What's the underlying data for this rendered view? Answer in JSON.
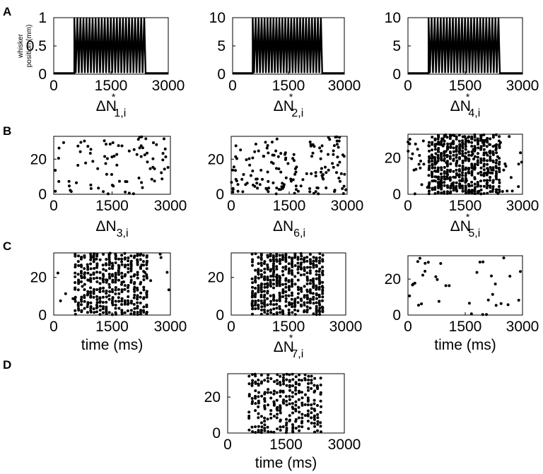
{
  "panel_labels": [
    "A",
    "B",
    "C",
    "D"
  ],
  "chart_data": [
    {
      "id": "A1",
      "type": "line",
      "panel": "A",
      "xlabel": "ΔN*1,i",
      "ylabel": "whisker position (mm)",
      "xlim": [
        0,
        3000
      ],
      "ylim": [
        0,
        1
      ],
      "xticks": [
        "0",
        "1500",
        "3000"
      ],
      "yticks": [
        "0",
        "0.5",
        "1"
      ],
      "stimulus": {
        "baseline": 0.02,
        "amplitude": 1,
        "on_start": 540,
        "on_end": 2450,
        "pulse_count": 24
      }
    },
    {
      "id": "A2",
      "type": "line",
      "panel": "A",
      "xlabel": "ΔN*2,i",
      "ylabel": "",
      "xlim": [
        0,
        3000
      ],
      "ylim": [
        0,
        10
      ],
      "xticks": [
        "0",
        "1500",
        "3000"
      ],
      "yticks": [
        "0",
        "5",
        "10"
      ],
      "stimulus": {
        "baseline": 0.2,
        "amplitude": 10,
        "on_start": 540,
        "on_end": 2450,
        "pulse_count": 24
      }
    },
    {
      "id": "A3",
      "type": "line",
      "panel": "A",
      "xlabel": "ΔN*4,i",
      "ylabel": "",
      "xlim": [
        0,
        3000
      ],
      "ylim": [
        0,
        10
      ],
      "xticks": [
        "0",
        "1500",
        "3000"
      ],
      "yticks": [
        "0",
        "5",
        "10"
      ],
      "stimulus": {
        "baseline": 0.2,
        "amplitude": 10,
        "on_start": 540,
        "on_end": 2450,
        "pulse_count": 24
      }
    },
    {
      "id": "B1",
      "type": "scatter",
      "panel": "B",
      "xlabel": "ΔN3,i",
      "ylabel": "",
      "xlim": [
        0,
        3000
      ],
      "ylim": [
        0,
        33
      ],
      "xticks": [
        "0",
        "1500",
        "3000"
      ],
      "yticks": [
        "0",
        "20"
      ],
      "raster": {
        "seed": 11,
        "n_trials": 33,
        "prob_per_bin": 0.05,
        "bin_ms": 60,
        "t_start": 0,
        "t_end": 3000
      }
    },
    {
      "id": "B2",
      "type": "scatter",
      "panel": "B",
      "xlabel": "ΔN6,i",
      "ylabel": "",
      "xlim": [
        0,
        3000
      ],
      "ylim": [
        0,
        33
      ],
      "xticks": [
        "0",
        "1500",
        "3000"
      ],
      "yticks": [
        "0",
        "20"
      ],
      "raster": {
        "seed": 23,
        "n_trials": 33,
        "prob_per_bin": 0.08,
        "bin_ms": 60,
        "t_start": 0,
        "t_end": 3000
      }
    },
    {
      "id": "B3",
      "type": "scatter",
      "panel": "B",
      "xlabel": "ΔN*5,i",
      "ylabel": "",
      "xlim": [
        0,
        3000
      ],
      "ylim": [
        0,
        33
      ],
      "xticks": [
        "0",
        "1500",
        "3000"
      ],
      "yticks": [
        "0",
        "20"
      ],
      "raster": {
        "seed": 37,
        "n_trials": 33,
        "prob_per_bin": 0.06,
        "bin_ms": 60,
        "t_start": 0,
        "t_end": 3000,
        "locked": {
          "t_start": 540,
          "t_end": 2450,
          "period_ms": 80,
          "prob": 0.5
        }
      }
    },
    {
      "id": "C1",
      "type": "scatter",
      "panel": "C",
      "xlabel": "time (ms)",
      "ylabel": "",
      "xlim": [
        0,
        3000
      ],
      "ylim": [
        0,
        33
      ],
      "xticks": [
        "0",
        "1500",
        "3000"
      ],
      "yticks": [
        "0",
        "20"
      ],
      "raster": {
        "seed": 41,
        "n_trials": 33,
        "prob_per_bin": 0.012,
        "bin_ms": 60,
        "t_start": 0,
        "t_end": 3000,
        "locked": {
          "t_start": 540,
          "t_end": 2450,
          "period_ms": 80,
          "prob": 0.45
        }
      }
    },
    {
      "id": "C2",
      "type": "scatter",
      "panel": "C",
      "xlabel": "ΔN*7,i",
      "ylabel": "",
      "xlim": [
        0,
        3000
      ],
      "ylim": [
        0,
        33
      ],
      "xticks": [
        "0",
        "1500",
        "3000"
      ],
      "yticks": [
        "0",
        "20"
      ],
      "raster": {
        "seed": 53,
        "n_trials": 33,
        "prob_per_bin": 0.002,
        "bin_ms": 60,
        "t_start": 0,
        "t_end": 3000,
        "locked": {
          "t_start": 540,
          "t_end": 2450,
          "period_ms": 80,
          "prob": 0.5
        }
      }
    },
    {
      "id": "C3",
      "type": "scatter",
      "panel": "C",
      "xlabel": "time (ms)",
      "ylabel": "",
      "xlim": [
        0,
        3000
      ],
      "ylim": [
        0,
        33
      ],
      "xticks": [
        "0",
        "1500",
        "3000"
      ],
      "yticks": [
        "0",
        "20"
      ],
      "raster": {
        "seed": 67,
        "n_trials": 33,
        "prob_per_bin": 0.018,
        "bin_ms": 60,
        "t_start": 0,
        "t_end": 3000
      }
    },
    {
      "id": "D1",
      "type": "scatter",
      "panel": "D",
      "xlabel": "time (ms)",
      "ylabel": "",
      "xlim": [
        0,
        3000
      ],
      "ylim": [
        0,
        33
      ],
      "xticks": [
        "0",
        "1500",
        "3000"
      ],
      "yticks": [
        "0",
        "20"
      ],
      "raster": {
        "seed": 79,
        "n_trials": 33,
        "prob_per_bin": 0.0,
        "bin_ms": 60,
        "t_start": 0,
        "t_end": 3000,
        "locked": {
          "t_start": 540,
          "t_end": 2450,
          "period_ms": 80,
          "prob": 0.32
        }
      }
    }
  ]
}
